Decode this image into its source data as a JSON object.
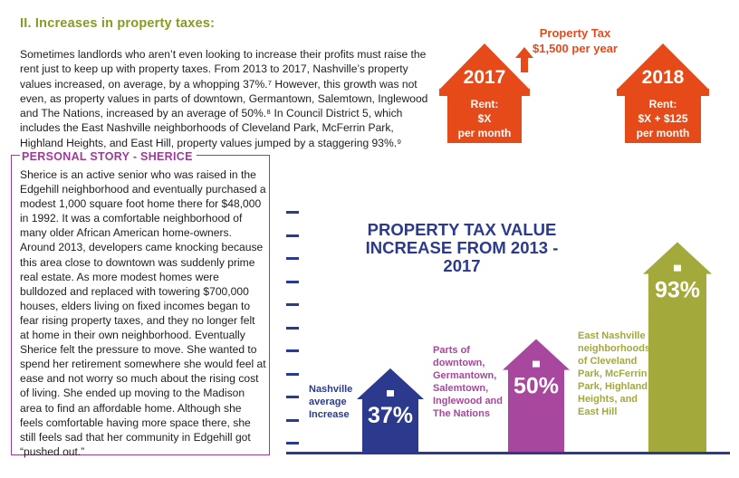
{
  "section": {
    "title": "II. Increases in property taxes:",
    "intro": "Sometimes landlords who aren’t even looking to increase their profits must raise the rent just to keep up with property taxes. From 2013 to 2017, Nashville’s property values increased, on average, by a whopping 37%.⁷ However, this growth was not even, as property values in parts of downtown, Germantown, Salemtown, Inglewood and The Nations, increased by an average of 50%.⁸ In Council District 5, which includes the East Nashville neighborhoods of Cleveland Park, McFerrin Park, Highland Heights, and East Hill, property values jumped by a staggering 93%.⁹"
  },
  "story": {
    "title": "PERSONAL STORY - SHERICE",
    "text": "Sherice is an active senior who was raised in the Edgehill neighborhood and eventually purchased a modest 1,000 square foot home there for $48,000 in 1992. It was a comfortable neighborhood of many older African American home-owners. Around 2013, developers came knocking because this area close to downtown was suddenly prime real estate. As more modest homes were bulldozed and replaced with towering $700,000 houses, elders living on fixed incomes began to fear rising property taxes, and they no longer felt at home in their own neighborhood. Eventually Sherice felt the pressure to move. She wanted to spend her retirement somewhere she would feel at ease and not worry so much about the rising cost of living. She ended up moving to the Madison area to find an affordable home. Although she feels comfortable having more space there, she still feels sad that her community in Edgehill got “pushed out.”"
  },
  "rent_graphic": {
    "tax_title": "Property Tax",
    "tax_amount": "$1,500 per year",
    "house_left": {
      "year": "2017",
      "rent_label": "Rent:",
      "rent_value": "$X",
      "period": "per month"
    },
    "house_right": {
      "year": "2018",
      "rent_label": "Rent:",
      "rent_value": "$X + $125",
      "period": "per month"
    },
    "color": "#e64a19"
  },
  "chart_data": {
    "type": "bar",
    "title": "PROPERTY TAX VALUE INCREASE FROM 2013 - 2017",
    "categories": [
      "Nashville average Increase",
      "Parts of downtown, Germantown, Salemtown, Inglewood and The Nations",
      "East Nashville neighborhoods of Cleveland Park, McFerrin Park, Highland Heights, and East Hill"
    ],
    "values": [
      37,
      50,
      93
    ],
    "value_labels": [
      "37%",
      "50%",
      "93%"
    ],
    "colors": [
      "#2b3a8c",
      "#a8479e",
      "#a3a93a"
    ],
    "label_lines": [
      [
        "Nashville",
        "average",
        "Increase"
      ],
      [
        "Parts of",
        "downtown,",
        "Germantown,",
        "Salemtown,",
        "Inglewood and",
        "The Nations"
      ],
      [
        "East Nashville",
        "neighborhoods",
        "of Cleveland",
        "Park, McFerrin",
        "Park, Highland",
        "Heights, and",
        "East Hill"
      ]
    ],
    "ylim": [
      0,
      100
    ]
  }
}
